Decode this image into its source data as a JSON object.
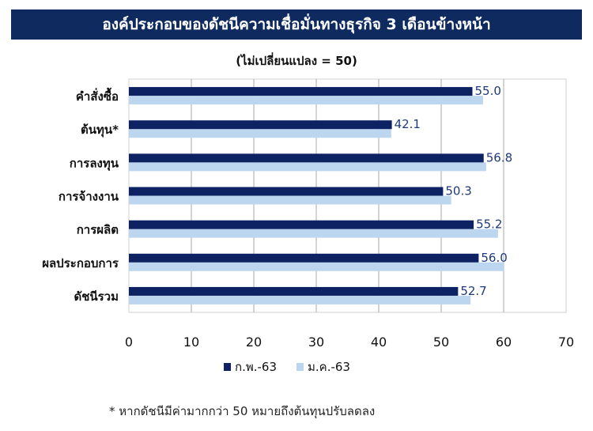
{
  "chart_data": {
    "type": "bar",
    "orientation": "horizontal",
    "title": "องค์ประกอบของดัชนีความเชื่อมั่นทางธุรกิจ 3 เดือนข้างหน้า",
    "subtitle": "(ไม่เปลี่ยนแปลง = 50)",
    "categories": [
      "คำสั่งซื้อ",
      "ต้นทุน*",
      "การลงทุน",
      "การจ้างงาน",
      "การผลิต",
      "ผลประกอบการ",
      "ดัชนีรวม"
    ],
    "series": [
      {
        "name": "ก.พ.-63",
        "color": "#0d2262",
        "values": [
          55.0,
          42.1,
          56.8,
          50.3,
          55.2,
          56.0,
          52.7
        ],
        "labels": [
          "55.0",
          "42.1",
          "56.8",
          "50.3",
          "55.2",
          "56.0",
          "52.7"
        ]
      },
      {
        "name": "ม.ค.-63",
        "color": "#bdd6ef",
        "values": [
          56.7,
          42.0,
          57.2,
          51.6,
          59.1,
          60.1,
          54.7
        ]
      }
    ],
    "xlim": [
      0,
      70
    ],
    "xticks": [
      "0",
      "10",
      "20",
      "30",
      "40",
      "50",
      "60",
      "70"
    ],
    "grid": "vertical",
    "legend": "bottom",
    "footnote": "* หากดัชนีมีค่ามากกว่า 50 หมายถึงต้นทุนปรับลดลง"
  }
}
